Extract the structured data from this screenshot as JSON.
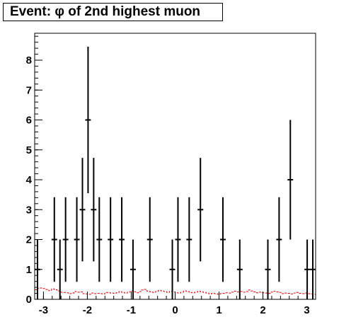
{
  "chart_data": {
    "type": "scatter",
    "title": "Event: φ of 2nd highest muon",
    "xlim": [
      -3.2,
      3.2
    ],
    "ylim": [
      0,
      8.9
    ],
    "xticks": [
      "-3",
      "-2",
      "-1",
      "0",
      "1",
      "2",
      "3"
    ],
    "xtick_values": [
      -3,
      -2,
      -1,
      0,
      1,
      2,
      3
    ],
    "yticks": [
      "0",
      "1",
      "2",
      "3",
      "4",
      "5",
      "6",
      "7",
      "8"
    ],
    "ytick_values": [
      0,
      1,
      2,
      3,
      4,
      5,
      6,
      7,
      8
    ],
    "bin_width": 0.128,
    "series": [
      {
        "style": "data points with error bars",
        "color": "#000000",
        "x": [
          -3.136,
          -2.752,
          -2.624,
          -2.496,
          -2.24,
          -2.112,
          -1.984,
          -1.856,
          -1.728,
          -1.472,
          -1.216,
          -0.96,
          -0.576,
          -0.064,
          0.064,
          0.32,
          0.576,
          1.088,
          1.472,
          2.112,
          2.368,
          2.624,
          3.008,
          3.136
        ],
        "y": [
          1,
          2,
          1,
          2,
          2,
          3,
          6,
          3,
          2,
          2,
          2,
          1,
          2,
          1,
          2,
          2,
          3,
          2,
          1,
          1,
          2,
          4,
          1,
          1
        ]
      },
      {
        "style": "dashed step histogram",
        "color": "#dd0000",
        "x_start": -3.2,
        "values": [
          0.32,
          0.37,
          0.38,
          0.36,
          0.33,
          0.29,
          0.35,
          0.32,
          0.28,
          0.24,
          0.23,
          0.22,
          0.19,
          0.21,
          0.26,
          0.24,
          0.25,
          0.19,
          0.18,
          0.17,
          0.21,
          0.19,
          0.2,
          0.19,
          0.18,
          0.23,
          0.22,
          0.21,
          0.2,
          0.22,
          0.26,
          0.23,
          0.21,
          0.24,
          0.28,
          0.25,
          0.22,
          0.26,
          0.31,
          0.33,
          0.27,
          0.25,
          0.23,
          0.26,
          0.3,
          0.28,
          0.26,
          0.23,
          0.27,
          0.25,
          0.22,
          0.21,
          0.24,
          0.28,
          0.26,
          0.23,
          0.22,
          0.24,
          0.27,
          0.25,
          0.23,
          0.21,
          0.18,
          0.2,
          0.19,
          0.17,
          0.19,
          0.2,
          0.22,
          0.21,
          0.24,
          0.27,
          0.25,
          0.26,
          0.24,
          0.26,
          0.31,
          0.28,
          0.25,
          0.22,
          0.24,
          0.22,
          0.21,
          0.2,
          0.24,
          0.27,
          0.25,
          0.23,
          0.19,
          0.21,
          0.2,
          0.18,
          0.21,
          0.23,
          0.2,
          0.19,
          0.21,
          0.19,
          0.18,
          0.17
        ]
      }
    ]
  }
}
